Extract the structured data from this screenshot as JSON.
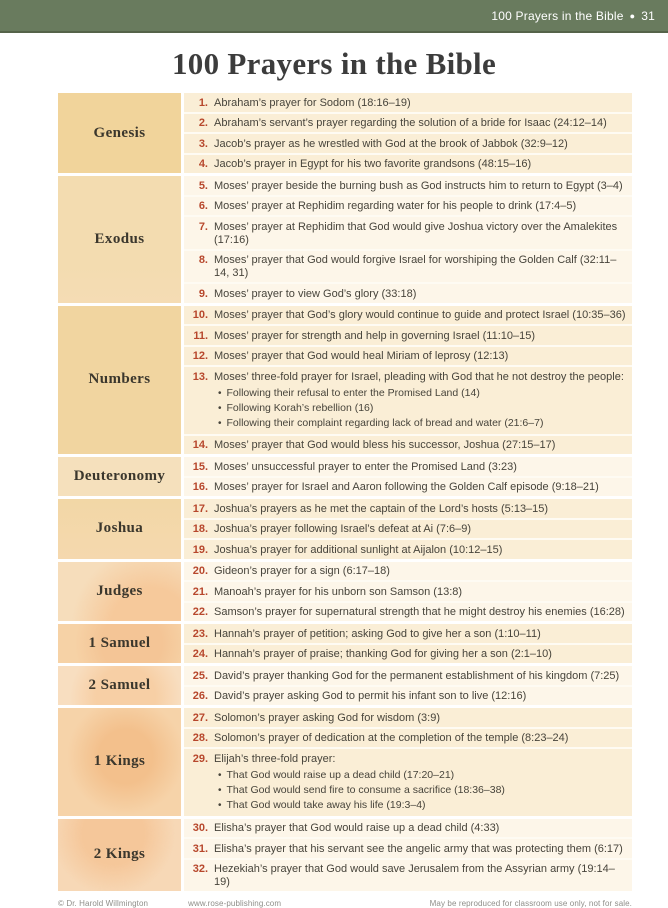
{
  "header": {
    "title": "100 Prayers in the Bible",
    "bullet": "●",
    "page_number": "31"
  },
  "page_title": "100 Prayers in the Bible",
  "colors": {
    "banner_green": "#697b5e",
    "number_red": "#b7472c",
    "row_cream_dark": "#faeed6",
    "row_cream_light": "#fdf6e9",
    "book_gold": "#f1d49b"
  },
  "table": {
    "bullet_glyph": "•",
    "groups": [
      {
        "book": "Genesis",
        "entries": [
          {
            "num": "1.",
            "text": "Abraham’s prayer for Sodom (18:16–19)"
          },
          {
            "num": "2.",
            "text": "Abraham’s servant’s prayer regarding the solution of a bride for Isaac (24:12–14)"
          },
          {
            "num": "3.",
            "text": "Jacob’s prayer as he wrestled with God at the brook of Jabbok (32:9–12)"
          },
          {
            "num": "4.",
            "text": "Jacob’s prayer in Egypt for his two favorite grandsons (48:15–16)"
          }
        ]
      },
      {
        "book": "Exodus",
        "entries": [
          {
            "num": "5.",
            "text": "Moses’ prayer beside the burning bush as God instructs him to return to Egypt (3–4)"
          },
          {
            "num": "6.",
            "text": "Moses’ prayer at Rephidim regarding water for his people to drink (17:4–5)"
          },
          {
            "num": "7.",
            "text": "Moses’ prayer at Rephidim that God would give Joshua victory over the Amalekites (17:16)"
          },
          {
            "num": "8.",
            "text": "Moses’ prayer that God would forgive Israel for worshiping the Golden Calf (32:11–14, 31)"
          },
          {
            "num": "9.",
            "text": "Moses’ prayer to view God’s glory (33:18)"
          }
        ]
      },
      {
        "book": "Numbers",
        "entries": [
          {
            "num": "10.",
            "text": "Moses’ prayer that God’s glory would continue to guide and protect Israel (10:35–36)"
          },
          {
            "num": "11.",
            "text": "Moses’ prayer for strength and help in governing Israel (11:10–15)"
          },
          {
            "num": "12.",
            "text": "Moses’ prayer that God would heal Miriam of leprosy (12:13)"
          },
          {
            "num": "13.",
            "text": "Moses’ three-fold prayer for Israel, pleading with God that he not destroy the people:",
            "bullets": [
              "Following their refusal to enter the Promised Land (14)",
              "Following Korah’s rebellion (16)",
              "Following their complaint regarding lack of bread and water (21:6–7)"
            ]
          },
          {
            "num": "14.",
            "text": "Moses’ prayer that God would bless his successor, Joshua (27:15–17)"
          }
        ]
      },
      {
        "book": "Deuteronomy",
        "entries": [
          {
            "num": "15.",
            "text": "Moses’ unsuccessful prayer to enter the Promised Land (3:23)"
          },
          {
            "num": "16.",
            "text": "Moses’ prayer for Israel and Aaron following the Golden Calf episode (9:18–21)"
          }
        ]
      },
      {
        "book": "Joshua",
        "entries": [
          {
            "num": "17.",
            "text": "Joshua’s prayers as he met the captain of the Lord’s hosts (5:13–15)"
          },
          {
            "num": "18.",
            "text": "Joshua’s prayer following Israel’s defeat at Ai (7:6–9)"
          },
          {
            "num": "19.",
            "text": "Joshua’s prayer for additional sunlight at Aijalon (10:12–15)"
          }
        ]
      },
      {
        "book": "Judges",
        "entries": [
          {
            "num": "20.",
            "text": "Gideon’s prayer for a sign (6:17–18)"
          },
          {
            "num": "21.",
            "text": "Manoah’s prayer for his unborn son Samson (13:8)"
          },
          {
            "num": "22.",
            "text": "Samson’s prayer for supernatural strength that he might destroy his enemies (16:28)"
          }
        ]
      },
      {
        "book": "1 Samuel",
        "entries": [
          {
            "num": "23.",
            "text": "Hannah’s prayer of petition; asking God to give her a son (1:10–11)"
          },
          {
            "num": "24.",
            "text": "Hannah’s prayer of praise; thanking God for giving her a son (2:1–10)"
          }
        ]
      },
      {
        "book": "2 Samuel",
        "entries": [
          {
            "num": "25.",
            "text": "David’s prayer thanking God for the permanent establishment of his kingdom (7:25)"
          },
          {
            "num": "26.",
            "text": "David’s prayer asking God to permit his infant son to live (12:16)"
          }
        ]
      },
      {
        "book": "1 Kings",
        "entries": [
          {
            "num": "27.",
            "text": "Solomon’s prayer asking God for wisdom (3:9)"
          },
          {
            "num": "28.",
            "text": "Solomon’s prayer of dedication at the completion of the temple (8:23–24)"
          },
          {
            "num": "29.",
            "text": "Elijah’s three-fold prayer:",
            "bullets": [
              "That God would raise up a dead child (17:20–21)",
              "That God would send fire to consume a sacrifice (18:36–38)",
              "That God would take away his life (19:3–4)"
            ]
          }
        ]
      },
      {
        "book": "2 Kings",
        "entries": [
          {
            "num": "30.",
            "text": "Elisha’s prayer that God would raise up a dead child (4:33)"
          },
          {
            "num": "31.",
            "text": "Elisha’s prayer that his servant see the angelic army that was protecting them (6:17)"
          },
          {
            "num": "32.",
            "text": "Hezekiah’s prayer that God would save Jerusalem from the Assyrian army (19:14–19)"
          }
        ]
      }
    ]
  },
  "footer": {
    "copyright": "© Dr. Harold Willmington",
    "website": "www.rose-publishing.com",
    "license": "May be reproduced for classroom use only, not for sale."
  }
}
